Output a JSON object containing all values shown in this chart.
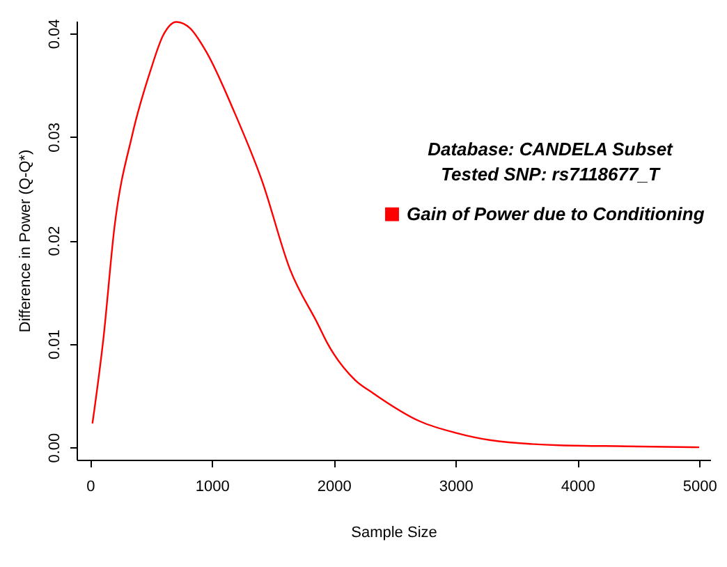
{
  "chart_data": {
    "type": "line",
    "xlabel": "Sample Size",
    "ylabel": "Difference in Power (Q-Q*)",
    "annotations": [
      "Database: CANDELA Subset",
      "Tested SNP: rs7118677_T"
    ],
    "series": [
      {
        "name": "Gain of Power due to Conditioning",
        "color": "#ff0000",
        "x": [
          20,
          110,
          201,
          347,
          499,
          600,
          708,
          820,
          955,
          1184,
          1413,
          1641,
          1870,
          1946,
          2175,
          2327,
          2709,
          3000,
          3280,
          3851,
          4400,
          4999
        ],
        "values": [
          0.0023,
          0.0105,
          0.0213,
          0.0302,
          0.0365,
          0.0398,
          0.0411,
          0.0405,
          0.0382,
          0.0324,
          0.0257,
          0.0172,
          0.0119,
          0.0101,
          0.0065,
          0.0052,
          0.0025,
          0.0014,
          0.0007,
          0.0002,
          0.0001,
          0.0
        ]
      }
    ],
    "xlim": [
      -110,
      5090
    ],
    "ylim": [
      -0.0012,
      0.0412
    ],
    "xticks": [
      0,
      1000,
      2000,
      3000,
      4000,
      5000
    ],
    "yticks": [
      {
        "value": 0,
        "label": "0.00"
      },
      {
        "value": 0.01,
        "label": "0.01"
      },
      {
        "value": 0.02,
        "label": "0.02"
      },
      {
        "value": 0.03,
        "label": "0.03"
      },
      {
        "value": 0.04,
        "label": "0.04"
      }
    ],
    "grid": false,
    "legend": "right",
    "line_style": "solid",
    "marker": "none"
  }
}
